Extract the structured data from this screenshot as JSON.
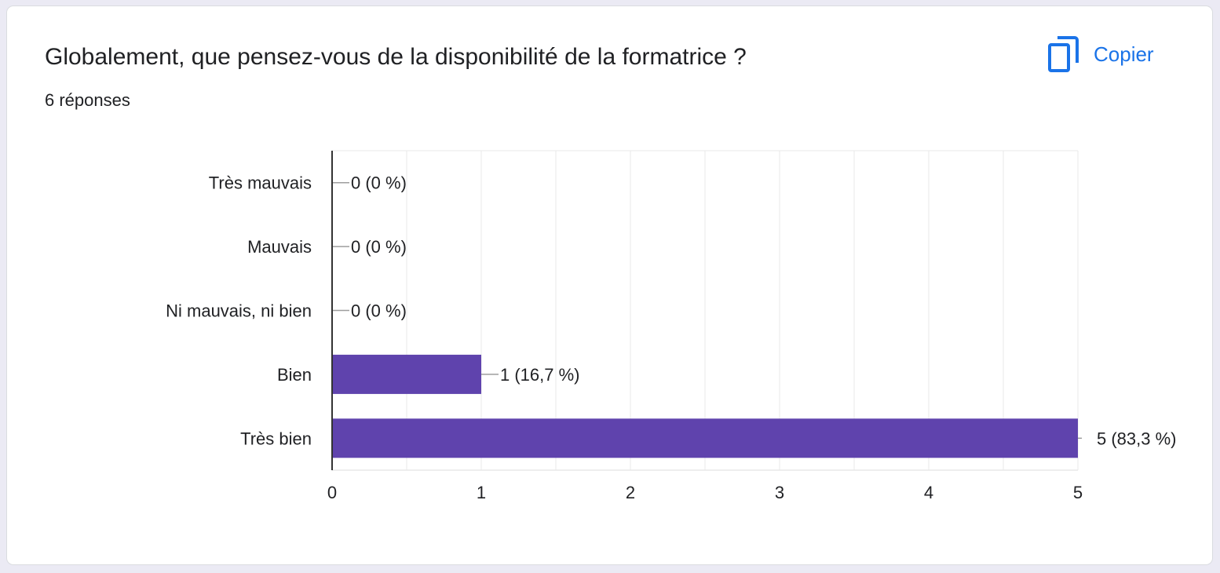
{
  "question": {
    "title": "Globalement, que pensez-vous de la disponibilité de la formatrice ?",
    "response_count": "6 réponses"
  },
  "toolbar": {
    "copy_label": "Copier",
    "copy_icon": "copy-icon"
  },
  "colors": {
    "bar": "#5f43ad",
    "accent": "#1a73e8",
    "text": "#202124",
    "grid": "#e8e8e8",
    "axis": "#333333",
    "leader": "#9e9e9e"
  },
  "chart_data": {
    "type": "bar",
    "orientation": "horizontal",
    "categories": [
      "Très mauvais",
      "Mauvais",
      "Ni mauvais, ni bien",
      "Bien",
      "Très bien"
    ],
    "values": [
      0,
      0,
      0,
      1,
      5
    ],
    "data_labels": [
      "0 (0 %)",
      "0 (0 %)",
      "0 (0 %)",
      "1 (16,7 %)",
      "5 (83,3 %)"
    ],
    "xlim": [
      0,
      5
    ],
    "x_ticks": [
      0,
      1,
      2,
      3,
      4,
      5
    ],
    "grid": true,
    "title": "",
    "xlabel": "",
    "ylabel": ""
  }
}
